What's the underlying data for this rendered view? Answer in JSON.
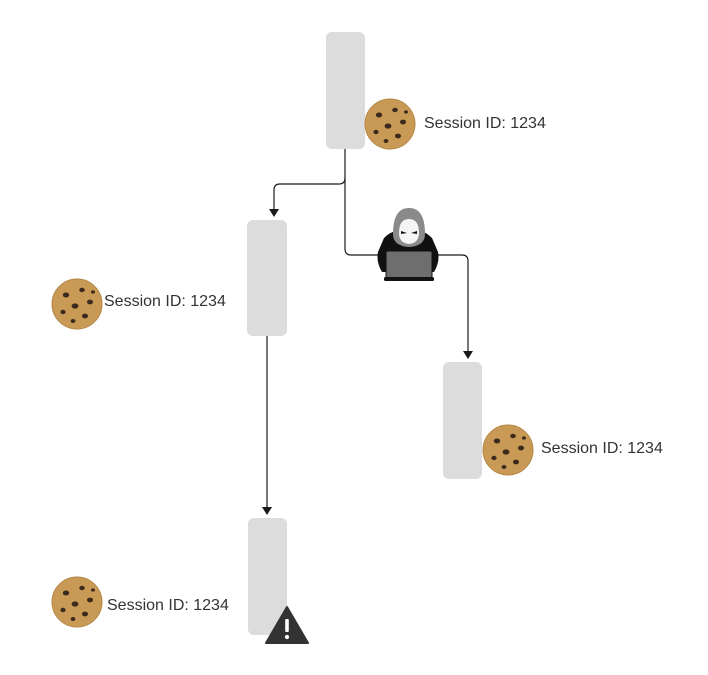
{
  "diagram": {
    "labels": {
      "top": "Session ID: 1234",
      "left_mid": "Session ID: 1234",
      "right_mid": "Session ID: 1234",
      "bottom": "Session ID: 1234"
    },
    "icons": {
      "cookie": "cookie-icon",
      "attacker": "hacker-with-laptop-icon",
      "warning": "warning-triangle-icon"
    },
    "colors": {
      "node_fill": "#dcdcdc",
      "arrow": "#1a1a1a",
      "text": "#333333",
      "cookie": "#c99a55",
      "cookie_chip": "#3b2a1d"
    }
  }
}
